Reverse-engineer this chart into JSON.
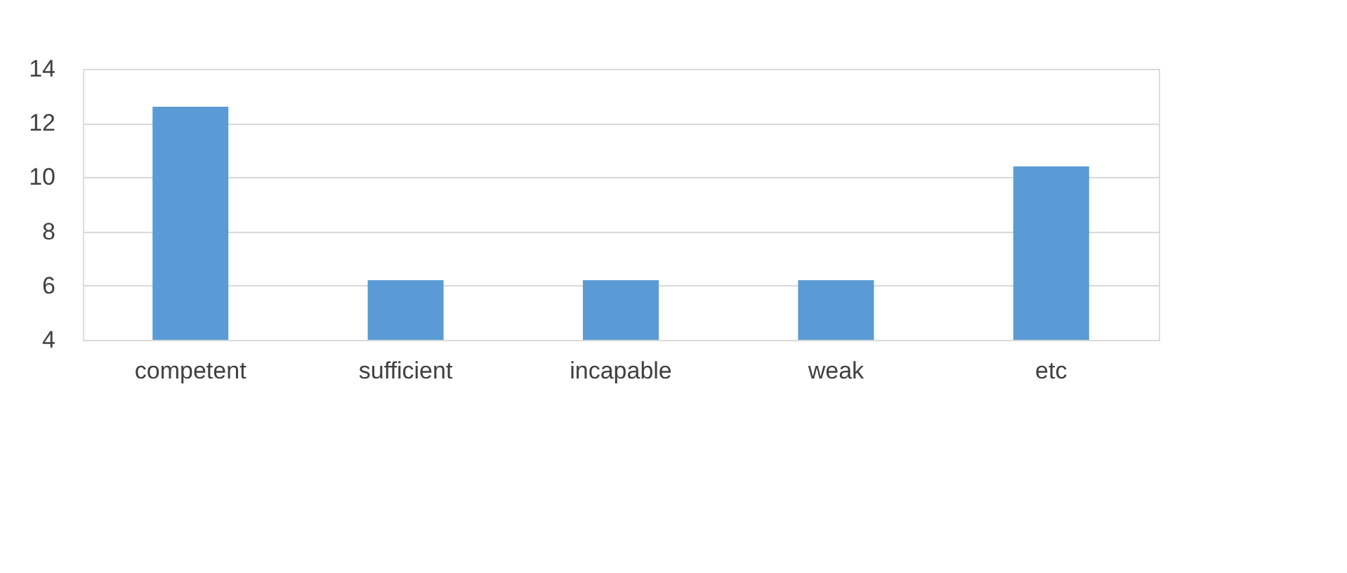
{
  "chart_data": {
    "type": "bar",
    "categories": [
      "competent",
      "sufficient",
      "incapable",
      "weak",
      "etc"
    ],
    "values": [
      12.6,
      6.2,
      6.2,
      6.2,
      10.4
    ],
    "color": "#5b9bd5",
    "ylim": [
      4,
      14
    ],
    "yticks": [
      4,
      6,
      8,
      10,
      12,
      14
    ],
    "grid": "y"
  }
}
